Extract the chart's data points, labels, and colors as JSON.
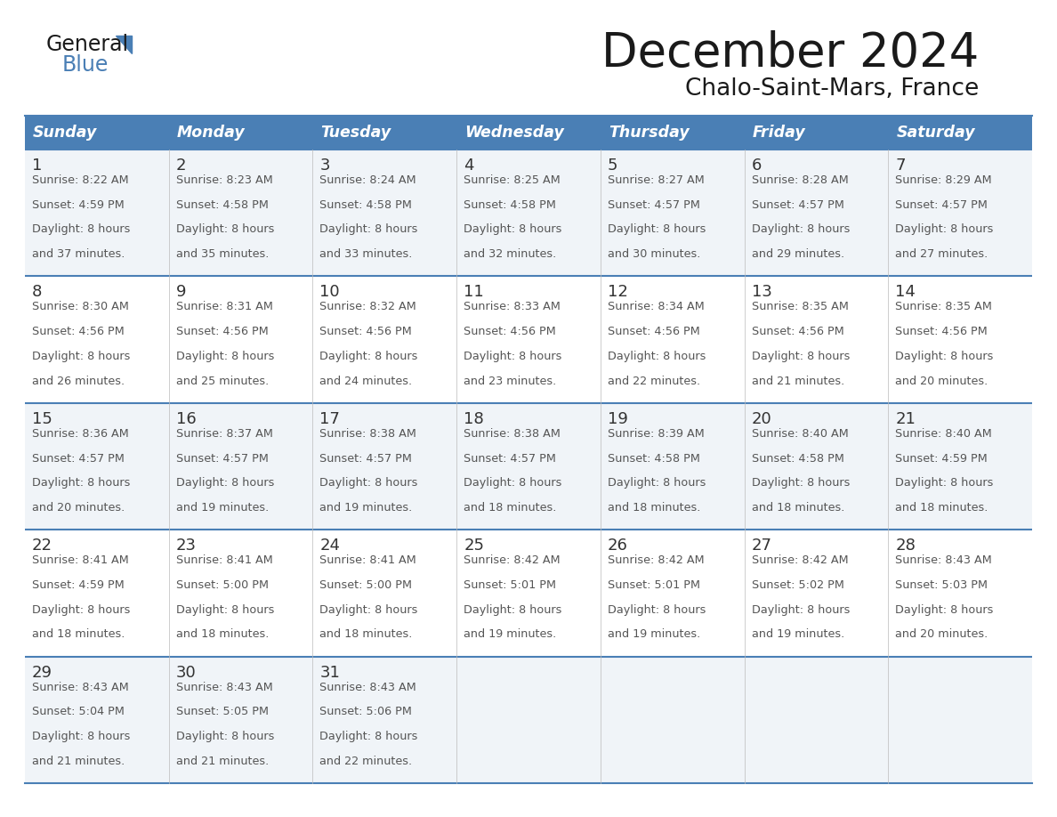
{
  "title": "December 2024",
  "subtitle": "Chalo-Saint-Mars, France",
  "days_of_week": [
    "Sunday",
    "Monday",
    "Tuesday",
    "Wednesday",
    "Thursday",
    "Friday",
    "Saturday"
  ],
  "header_bg": "#4A7FB5",
  "header_text": "#FFFFFF",
  "row_bg_light": "#F0F4F8",
  "row_bg_white": "#FFFFFF",
  "border_color": "#4A7FB5",
  "day_number_color": "#333333",
  "text_color": "#555555",
  "logo_general_color": "#1a1a1a",
  "logo_blue_color": "#4A7FB5",
  "title_color": "#1a1a1a",
  "calendar_data": [
    [
      {
        "day": 1,
        "sunrise": "8:22 AM",
        "sunset": "4:59 PM",
        "daylight": "8 hours and 37 minutes."
      },
      {
        "day": 2,
        "sunrise": "8:23 AM",
        "sunset": "4:58 PM",
        "daylight": "8 hours and 35 minutes."
      },
      {
        "day": 3,
        "sunrise": "8:24 AM",
        "sunset": "4:58 PM",
        "daylight": "8 hours and 33 minutes."
      },
      {
        "day": 4,
        "sunrise": "8:25 AM",
        "sunset": "4:58 PM",
        "daylight": "8 hours and 32 minutes."
      },
      {
        "day": 5,
        "sunrise": "8:27 AM",
        "sunset": "4:57 PM",
        "daylight": "8 hours and 30 minutes."
      },
      {
        "day": 6,
        "sunrise": "8:28 AM",
        "sunset": "4:57 PM",
        "daylight": "8 hours and 29 minutes."
      },
      {
        "day": 7,
        "sunrise": "8:29 AM",
        "sunset": "4:57 PM",
        "daylight": "8 hours and 27 minutes."
      }
    ],
    [
      {
        "day": 8,
        "sunrise": "8:30 AM",
        "sunset": "4:56 PM",
        "daylight": "8 hours and 26 minutes."
      },
      {
        "day": 9,
        "sunrise": "8:31 AM",
        "sunset": "4:56 PM",
        "daylight": "8 hours and 25 minutes."
      },
      {
        "day": 10,
        "sunrise": "8:32 AM",
        "sunset": "4:56 PM",
        "daylight": "8 hours and 24 minutes."
      },
      {
        "day": 11,
        "sunrise": "8:33 AM",
        "sunset": "4:56 PM",
        "daylight": "8 hours and 23 minutes."
      },
      {
        "day": 12,
        "sunrise": "8:34 AM",
        "sunset": "4:56 PM",
        "daylight": "8 hours and 22 minutes."
      },
      {
        "day": 13,
        "sunrise": "8:35 AM",
        "sunset": "4:56 PM",
        "daylight": "8 hours and 21 minutes."
      },
      {
        "day": 14,
        "sunrise": "8:35 AM",
        "sunset": "4:56 PM",
        "daylight": "8 hours and 20 minutes."
      }
    ],
    [
      {
        "day": 15,
        "sunrise": "8:36 AM",
        "sunset": "4:57 PM",
        "daylight": "8 hours and 20 minutes."
      },
      {
        "day": 16,
        "sunrise": "8:37 AM",
        "sunset": "4:57 PM",
        "daylight": "8 hours and 19 minutes."
      },
      {
        "day": 17,
        "sunrise": "8:38 AM",
        "sunset": "4:57 PM",
        "daylight": "8 hours and 19 minutes."
      },
      {
        "day": 18,
        "sunrise": "8:38 AM",
        "sunset": "4:57 PM",
        "daylight": "8 hours and 18 minutes."
      },
      {
        "day": 19,
        "sunrise": "8:39 AM",
        "sunset": "4:58 PM",
        "daylight": "8 hours and 18 minutes."
      },
      {
        "day": 20,
        "sunrise": "8:40 AM",
        "sunset": "4:58 PM",
        "daylight": "8 hours and 18 minutes."
      },
      {
        "day": 21,
        "sunrise": "8:40 AM",
        "sunset": "4:59 PM",
        "daylight": "8 hours and 18 minutes."
      }
    ],
    [
      {
        "day": 22,
        "sunrise": "8:41 AM",
        "sunset": "4:59 PM",
        "daylight": "8 hours and 18 minutes."
      },
      {
        "day": 23,
        "sunrise": "8:41 AM",
        "sunset": "5:00 PM",
        "daylight": "8 hours and 18 minutes."
      },
      {
        "day": 24,
        "sunrise": "8:41 AM",
        "sunset": "5:00 PM",
        "daylight": "8 hours and 18 minutes."
      },
      {
        "day": 25,
        "sunrise": "8:42 AM",
        "sunset": "5:01 PM",
        "daylight": "8 hours and 19 minutes."
      },
      {
        "day": 26,
        "sunrise": "8:42 AM",
        "sunset": "5:01 PM",
        "daylight": "8 hours and 19 minutes."
      },
      {
        "day": 27,
        "sunrise": "8:42 AM",
        "sunset": "5:02 PM",
        "daylight": "8 hours and 19 minutes."
      },
      {
        "day": 28,
        "sunrise": "8:43 AM",
        "sunset": "5:03 PM",
        "daylight": "8 hours and 20 minutes."
      }
    ],
    [
      {
        "day": 29,
        "sunrise": "8:43 AM",
        "sunset": "5:04 PM",
        "daylight": "8 hours and 21 minutes."
      },
      {
        "day": 30,
        "sunrise": "8:43 AM",
        "sunset": "5:05 PM",
        "daylight": "8 hours and 21 minutes."
      },
      {
        "day": 31,
        "sunrise": "8:43 AM",
        "sunset": "5:06 PM",
        "daylight": "8 hours and 22 minutes."
      },
      null,
      null,
      null,
      null
    ]
  ]
}
